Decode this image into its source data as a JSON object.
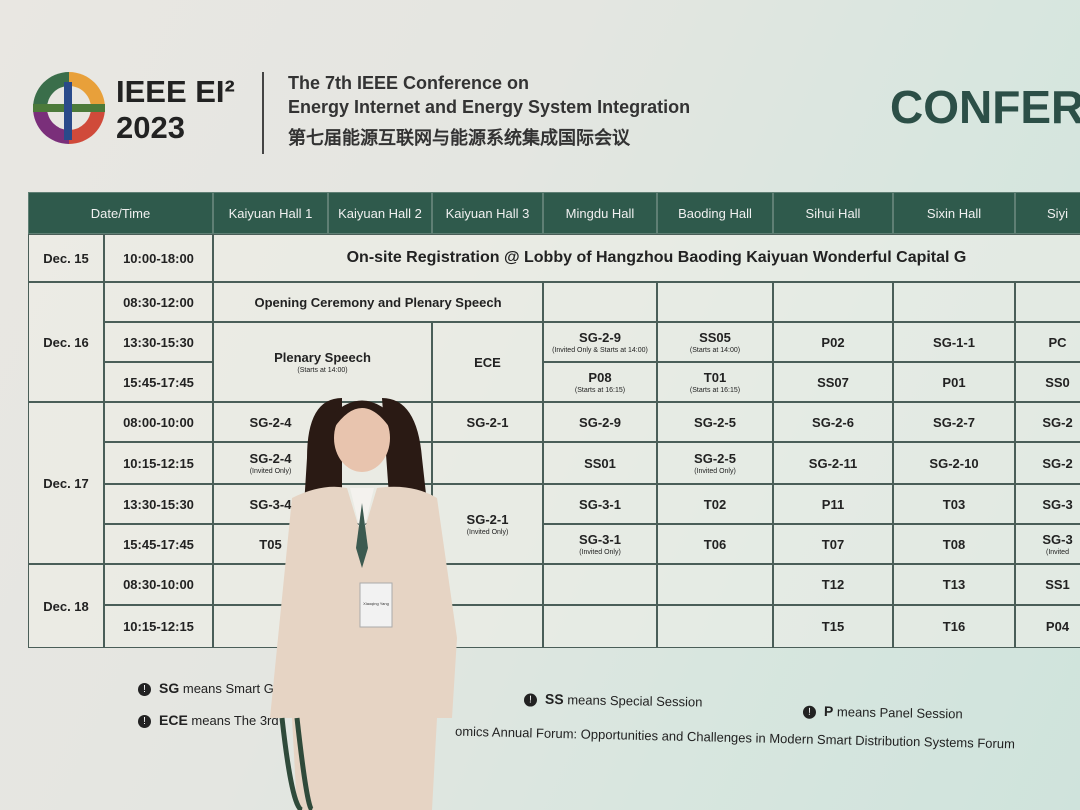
{
  "header": {
    "brand_line1": "IEEE EI²",
    "brand_line2": "2023",
    "title_line1": "The 7th IEEE Conference on",
    "title_line2": "Energy Internet and Energy System Integration",
    "title_cn": "第七届能源互联网与能源系统集成国际会议",
    "side_word": "CONFER"
  },
  "schedule": {
    "headers": [
      "Date/Time",
      "Kaiyuan Hall 1",
      "Kaiyuan Hall 2",
      "Kaiyuan Hall 3",
      "Mingdu Hall",
      "Baoding Hall",
      "Sihui Hall",
      "Sixin Hall",
      "Siyi"
    ],
    "cells": [
      {
        "t": "Dec. 15"
      },
      {
        "t": "10:00-18:00"
      },
      {
        "t": "On-site Registration @ Lobby of Hangzhou Baoding Kaiyuan Wonderful Capital G"
      },
      {
        "t": "Dec. 16"
      },
      {
        "t": "08:30-12:00"
      },
      {
        "t": "13:30-15:30"
      },
      {
        "t": "15:45-17:45"
      },
      {
        "t": "Opening Ceremony and Plenary Speech"
      },
      {
        "t": ""
      },
      {
        "t": ""
      },
      {
        "t": ""
      },
      {
        "t": ""
      },
      {
        "t": ""
      },
      {
        "t": "Plenary Speech",
        "s": "(Starts at 14:00)"
      },
      {
        "t": "ECE"
      },
      {
        "t": "SG-2-9",
        "s": "(Invited Only & Starts at 14:00)"
      },
      {
        "t": "SS05",
        "s": "(Starts at 14:00)"
      },
      {
        "t": "P02"
      },
      {
        "t": "SG-1-1"
      },
      {
        "t": "PC"
      },
      {
        "t": "P08",
        "s": "(Starts at 16:15)"
      },
      {
        "t": "T01",
        "s": "(Starts at 16:15)"
      },
      {
        "t": "SS07"
      },
      {
        "t": "P01"
      },
      {
        "t": "SS0"
      },
      {
        "t": "Dec. 17"
      },
      {
        "t": "08:00-10:00"
      },
      {
        "t": "10:15-12:15"
      },
      {
        "t": "13:30-15:30"
      },
      {
        "t": "15:45-17:45"
      },
      {
        "t": "SG-2-4"
      },
      {
        "t": ""
      },
      {
        "t": "SG-2-1"
      },
      {
        "t": "SG-2-9"
      },
      {
        "t": "SG-2-5"
      },
      {
        "t": "SG-2-6"
      },
      {
        "t": "SG-2-7"
      },
      {
        "t": "SG-2"
      },
      {
        "t": "SG-2-4",
        "s": "(Invited Only)"
      },
      {
        "t": ""
      },
      {
        "t": ""
      },
      {
        "t": "SS01"
      },
      {
        "t": "SG-2-5",
        "s": "(Invited Only)"
      },
      {
        "t": "SG-2-11"
      },
      {
        "t": "SG-2-10"
      },
      {
        "t": "SG-2"
      },
      {
        "t": "SG-3-4"
      },
      {
        "t": ""
      },
      {
        "t": "SG-2-1",
        "s": "(Invited Only)"
      },
      {
        "t": "SG-3-1"
      },
      {
        "t": "T02"
      },
      {
        "t": "P11"
      },
      {
        "t": "T03"
      },
      {
        "t": "SG-3"
      },
      {
        "t": "T05"
      },
      {
        "t": ""
      },
      {
        "t": "SG-3-1",
        "s": "(Invited Only)"
      },
      {
        "t": "T06"
      },
      {
        "t": "T07"
      },
      {
        "t": "T08"
      },
      {
        "t": "SG-3",
        "s": "(Invited"
      },
      {
        "t": "Dec. 18"
      },
      {
        "t": "08:30-10:00"
      },
      {
        "t": "10:15-12:15"
      },
      {
        "t": ""
      },
      {
        "t": ""
      },
      {
        "t": ""
      },
      {
        "t": ""
      },
      {
        "t": ""
      },
      {
        "t": "T12"
      },
      {
        "t": "T13"
      },
      {
        "t": "SS1"
      },
      {
        "t": ""
      },
      {
        "t": ""
      },
      {
        "t": ""
      },
      {
        "t": ""
      },
      {
        "t": ""
      },
      {
        "t": "T15"
      },
      {
        "t": "T16"
      },
      {
        "t": "P04"
      }
    ]
  },
  "legend": {
    "sg_abbr": "SG",
    "sg_text": "means Smart G",
    "ece_abbr": "ECE",
    "ece_text": "means The 3rd",
    "ss_abbr": "SS",
    "ss_text": "means Special Session",
    "p_abbr": "P",
    "p_text": "means Panel Session",
    "forum": "omics Annual Forum: Opportunities and Challenges in Modern Smart Distribution Systems Forum"
  },
  "badge": {
    "name": "Xiaoqing Yang"
  },
  "colors": {
    "table_header": "#2f5a4c",
    "coat": "#e6d4c4",
    "hair": "#2a1a14"
  }
}
